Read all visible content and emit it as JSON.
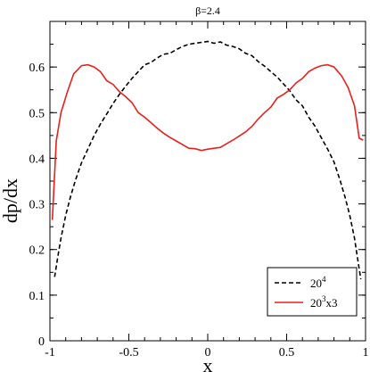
{
  "chart_data": {
    "type": "line",
    "title": "β=2.4",
    "xlabel": "x",
    "ylabel": "dp/dx",
    "xlim": [
      -1,
      1
    ],
    "ylim": [
      0,
      0.7
    ],
    "x_ticks": [
      "-1",
      "-0.5",
      "0",
      "0.5",
      "1"
    ],
    "y_ticks": [
      "0",
      "0.1",
      "0.2",
      "0.3",
      "0.4",
      "0.5",
      "0.6"
    ],
    "grid": false,
    "legend_position": "bottom-right",
    "series": [
      {
        "name_base": "20",
        "name_sup": "4",
        "name_rest": "",
        "color": "#000000",
        "dash": "dashed",
        "x": [
          -0.97,
          -0.95,
          -0.93,
          -0.9,
          -0.87,
          -0.84,
          -0.8,
          -0.76,
          -0.72,
          -0.68,
          -0.64,
          -0.6,
          -0.56,
          -0.52,
          -0.48,
          -0.44,
          -0.4,
          -0.36,
          -0.32,
          -0.28,
          -0.24,
          -0.2,
          -0.16,
          -0.12,
          -0.08,
          -0.04,
          0.0,
          0.04,
          0.08,
          0.12,
          0.16,
          0.2,
          0.24,
          0.28,
          0.32,
          0.36,
          0.4,
          0.44,
          0.48,
          0.52,
          0.56,
          0.6,
          0.64,
          0.68,
          0.72,
          0.76,
          0.8,
          0.84,
          0.87,
          0.9,
          0.93,
          0.95,
          0.97
        ],
        "y": [
          0.14,
          0.185,
          0.225,
          0.275,
          0.315,
          0.35,
          0.39,
          0.42,
          0.45,
          0.475,
          0.497,
          0.52,
          0.54,
          0.558,
          0.575,
          0.59,
          0.605,
          0.61,
          0.62,
          0.628,
          0.63,
          0.638,
          0.645,
          0.65,
          0.652,
          0.654,
          0.656,
          0.652,
          0.655,
          0.648,
          0.645,
          0.64,
          0.63,
          0.625,
          0.612,
          0.602,
          0.59,
          0.578,
          0.563,
          0.548,
          0.528,
          0.515,
          0.49,
          0.47,
          0.445,
          0.42,
          0.392,
          0.35,
          0.315,
          0.275,
          0.225,
          0.18,
          0.135
        ]
      },
      {
        "name_base": "20",
        "name_sup": "3",
        "name_rest": "x3",
        "color": "#e8201c",
        "dash": "solid",
        "x": [
          -0.985,
          -0.96,
          -0.93,
          -0.89,
          -0.85,
          -0.8,
          -0.76,
          -0.72,
          -0.68,
          -0.64,
          -0.6,
          -0.56,
          -0.52,
          -0.48,
          -0.44,
          -0.4,
          -0.36,
          -0.32,
          -0.28,
          -0.24,
          -0.2,
          -0.16,
          -0.12,
          -0.08,
          -0.04,
          0.0,
          0.04,
          0.08,
          0.12,
          0.16,
          0.2,
          0.24,
          0.28,
          0.32,
          0.36,
          0.4,
          0.44,
          0.48,
          0.52,
          0.56,
          0.6,
          0.64,
          0.68,
          0.72,
          0.76,
          0.8,
          0.85,
          0.89,
          0.93,
          0.96,
          0.985
        ],
        "y": [
          0.265,
          0.438,
          0.5,
          0.545,
          0.585,
          0.603,
          0.605,
          0.6,
          0.59,
          0.57,
          0.562,
          0.546,
          0.535,
          0.522,
          0.5,
          0.49,
          0.478,
          0.466,
          0.455,
          0.446,
          0.438,
          0.43,
          0.422,
          0.421,
          0.417,
          0.42,
          0.422,
          0.424,
          0.432,
          0.44,
          0.449,
          0.458,
          0.47,
          0.486,
          0.5,
          0.512,
          0.532,
          0.54,
          0.55,
          0.565,
          0.575,
          0.59,
          0.598,
          0.603,
          0.605,
          0.6,
          0.58,
          0.555,
          0.515,
          0.444,
          0.44
        ]
      }
    ]
  }
}
